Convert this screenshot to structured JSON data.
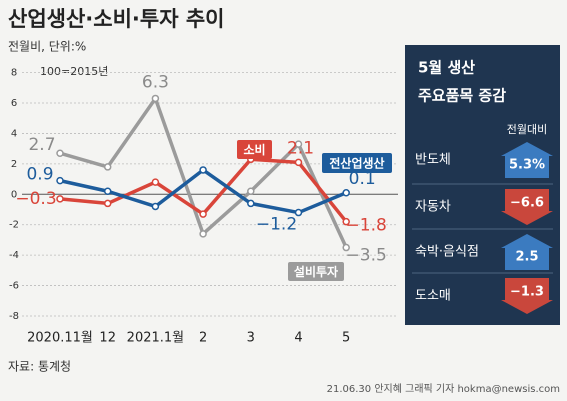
{
  "chart_data": {
    "type": "line",
    "title": "산업생산·소비·투자 추이",
    "subtitle": "전월비, 단위:%",
    "note": "100=2015년",
    "source": "자료: 통계청",
    "credit": "21.06.30 안지혜 그래픽 기자 hokma@newsis.com",
    "categories": [
      "2020.11월",
      "12",
      "2021.1월",
      "2",
      "3",
      "4",
      "5"
    ],
    "ylim": [
      -8,
      8
    ],
    "yticks": [
      8,
      6,
      4,
      2,
      0,
      -2,
      -4,
      -6,
      -8
    ],
    "grid": true,
    "series": [
      {
        "name": "설비투자",
        "color": "#9b9b9b",
        "values": [
          2.7,
          1.8,
          6.3,
          -2.6,
          0.2,
          3.3,
          -3.5
        ],
        "value_labels": [
          "2.7",
          null,
          "6.3",
          null,
          null,
          null,
          "−3.5"
        ]
      },
      {
        "name": "소비",
        "color": "#d9453a",
        "values": [
          -0.3,
          -0.6,
          0.8,
          -1.3,
          2.3,
          2.1,
          -1.8
        ],
        "value_labels": [
          "−0.3",
          null,
          null,
          null,
          null,
          "2.1",
          "−1.8"
        ]
      },
      {
        "name": "전산업생산",
        "color": "#1d5c9c",
        "values": [
          0.9,
          0.2,
          -0.8,
          1.6,
          -0.6,
          -1.2,
          0.1
        ],
        "value_labels": [
          "0.9",
          null,
          null,
          null,
          null,
          "−1.2",
          "0.1"
        ]
      }
    ],
    "panel": {
      "title": "5월 생산",
      "subtitle": "주요품목 증감",
      "basis": "전월대비",
      "items": [
        {
          "name": "반도체",
          "value": 5.3,
          "value_label": "5.3%"
        },
        {
          "name": "자동차",
          "value": -6.6,
          "value_label": "−6.6"
        },
        {
          "name": "숙박·음식점",
          "value": 2.5,
          "value_label": "2.5"
        },
        {
          "name": "도소매",
          "value": -1.3,
          "value_label": "−1.3"
        }
      ]
    }
  }
}
